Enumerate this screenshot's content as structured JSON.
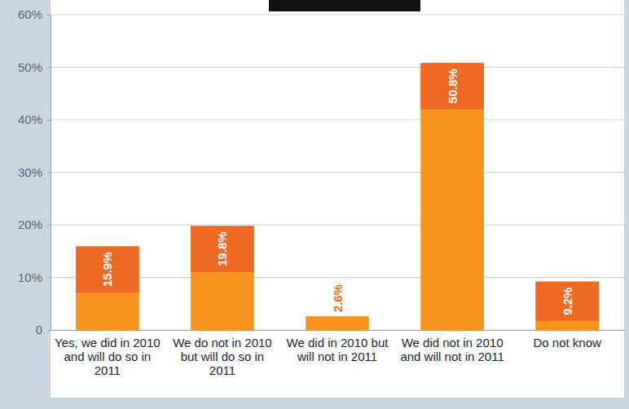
{
  "chart_data": {
    "type": "bar",
    "categories": [
      "Yes, we did in 2010 and will do so in 2011",
      "We do not in 2010 but will do so in 2011",
      "We did in 2010 but will not in 2011",
      "We did not in 2010 and will not in 2011",
      "Do not know"
    ],
    "values": [
      15.9,
      19.8,
      2.6,
      50.8,
      9.2
    ],
    "value_labels": [
      "15.9%",
      "19.8%",
      "2.6%",
      "50.8%",
      "9.2%"
    ],
    "color": "#f7931e",
    "ylim": [
      0,
      60
    ],
    "yticks": [
      0,
      {
        "value": 10,
        "label": "10%"
      },
      {
        "value": 20,
        "label": "20%"
      },
      {
        "value": 30,
        "label": "30%"
      },
      {
        "value": 40,
        "label": "40%"
      },
      {
        "value": 50,
        "label": "50%"
      },
      {
        "value": 60,
        "label": "60%"
      }
    ],
    "grid": true,
    "data_labels": true
  }
}
